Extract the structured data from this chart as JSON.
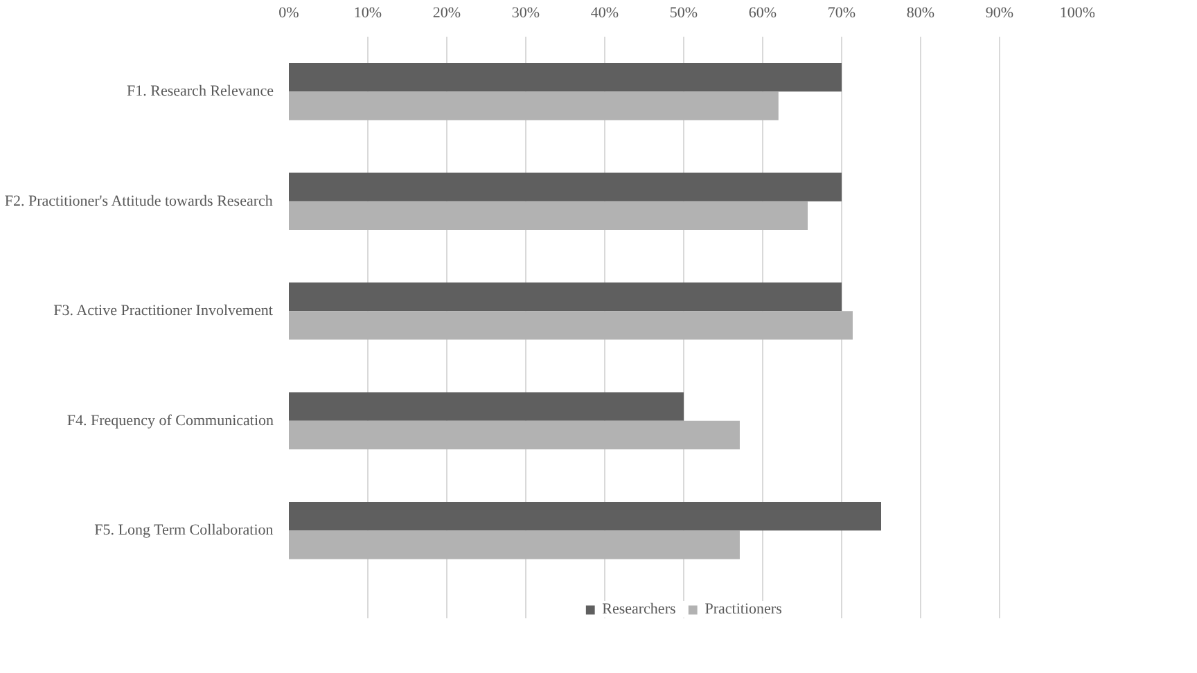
{
  "chart_data": {
    "type": "bar",
    "orientation": "horizontal",
    "categories": [
      "F1. Research Relevance",
      "F2. Practitioner's Attitude towards Research",
      "F3. Active Practitioner Involvement",
      "F4. Frequency of Communication",
      "F5. Long Term Collaboration"
    ],
    "series": [
      {
        "name": "Researchers",
        "color": "#5f5f5f",
        "values": [
          70,
          70,
          70,
          50,
          75
        ]
      },
      {
        "name": "Practitioners",
        "color": "#b2b2b2",
        "values": [
          62,
          65.7,
          71.4,
          57.1,
          57.1
        ]
      }
    ],
    "xlim": [
      0,
      100
    ],
    "xticks": [
      {
        "value": 0,
        "label": "0%"
      },
      {
        "value": 10,
        "label": "10%"
      },
      {
        "value": 20,
        "label": "20%"
      },
      {
        "value": 30,
        "label": "30%"
      },
      {
        "value": 40,
        "label": "40%"
      },
      {
        "value": 50,
        "label": "50%"
      },
      {
        "value": 60,
        "label": "60%"
      },
      {
        "value": 70,
        "label": "70%"
      },
      {
        "value": 80,
        "label": "80%"
      },
      {
        "value": 90,
        "label": "90%"
      },
      {
        "value": 100,
        "label": "100%"
      }
    ],
    "grid": "x",
    "legend": "bottom"
  }
}
